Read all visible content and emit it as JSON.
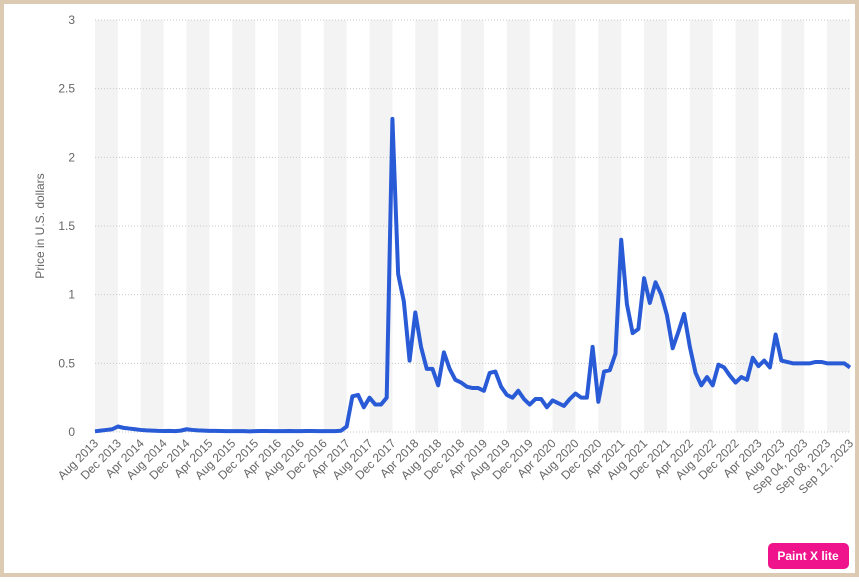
{
  "chart_data": {
    "type": "line",
    "y_label": "Price in U.S. dollars",
    "watermark": "Paint X lite",
    "categories": [
      "Aug 2013",
      null,
      null,
      null,
      "Dec 2013",
      null,
      null,
      null,
      "Apr 2014",
      null,
      null,
      null,
      "Aug 2014",
      null,
      null,
      null,
      "Dec 2014",
      null,
      null,
      null,
      "Apr 2015",
      null,
      null,
      null,
      "Aug 2015",
      null,
      null,
      null,
      "Dec 2015",
      null,
      null,
      null,
      "Apr 2016",
      null,
      null,
      null,
      "Aug 2016",
      null,
      null,
      null,
      "Dec 2016",
      null,
      null,
      null,
      "Apr 2017",
      null,
      null,
      null,
      "Aug 2017",
      null,
      null,
      null,
      "Dec 2017",
      null,
      null,
      null,
      "Apr 2018",
      null,
      null,
      null,
      "Aug 2018",
      null,
      null,
      null,
      "Dec 2018",
      null,
      null,
      null,
      "Apr 2019",
      null,
      null,
      null,
      "Aug 2019",
      null,
      null,
      null,
      "Dec 2019",
      null,
      null,
      null,
      "Apr 2020",
      null,
      null,
      null,
      "Aug 2020",
      null,
      null,
      null,
      "Dec 2020",
      null,
      null,
      null,
      "Apr 2021",
      null,
      null,
      null,
      "Aug 2021",
      null,
      null,
      null,
      "Dec 2021",
      null,
      null,
      null,
      "Apr 2022",
      null,
      null,
      null,
      "Aug 2022",
      null,
      null,
      null,
      "Dec 2022",
      null,
      null,
      null,
      "Apr 2023",
      null,
      null,
      null,
      "Aug 2023",
      null,
      null,
      null,
      "Sep 04, 2023",
      null,
      null,
      null,
      "Sep 08, 2023",
      null,
      null,
      null,
      "Sep 12, 2023"
    ],
    "series": [
      {
        "name": "Price",
        "color": "#2a5bd7",
        "values": [
          0.005,
          0.01,
          0.015,
          0.02,
          0.04,
          0.03,
          0.025,
          0.02,
          0.015,
          0.012,
          0.01,
          0.008,
          0.007,
          0.008,
          0.006,
          0.01,
          0.02,
          0.015,
          0.012,
          0.01,
          0.008,
          0.008,
          0.007,
          0.006,
          0.006,
          0.006,
          0.006,
          0.005,
          0.006,
          0.007,
          0.007,
          0.006,
          0.006,
          0.006,
          0.007,
          0.006,
          0.006,
          0.007,
          0.007,
          0.006,
          0.006,
          0.006,
          0.006,
          0.009,
          0.04,
          0.26,
          0.27,
          0.18,
          0.25,
          0.2,
          0.2,
          0.25,
          2.28,
          1.15,
          0.95,
          0.52,
          0.87,
          0.62,
          0.46,
          0.46,
          0.34,
          0.58,
          0.46,
          0.38,
          0.36,
          0.33,
          0.32,
          0.32,
          0.3,
          0.43,
          0.44,
          0.33,
          0.27,
          0.25,
          0.3,
          0.24,
          0.2,
          0.24,
          0.24,
          0.18,
          0.23,
          0.21,
          0.19,
          0.24,
          0.28,
          0.25,
          0.25,
          0.62,
          0.22,
          0.44,
          0.45,
          0.57,
          1.4,
          0.93,
          0.72,
          0.75,
          1.12,
          0.94,
          1.09,
          1.0,
          0.85,
          0.61,
          0.73,
          0.86,
          0.62,
          0.43,
          0.34,
          0.4,
          0.34,
          0.49,
          0.47,
          0.41,
          0.36,
          0.4,
          0.38,
          0.54,
          0.48,
          0.52,
          0.47,
          0.71,
          0.52,
          0.51,
          0.5,
          0.5,
          0.5,
          0.5,
          0.51,
          0.51,
          0.5,
          0.5,
          0.5,
          0.5,
          0.47
        ]
      }
    ],
    "ylim": [
      0,
      3
    ],
    "yticks": [
      0,
      0.5,
      1,
      1.5,
      2,
      2.5,
      3
    ],
    "grid": true
  }
}
